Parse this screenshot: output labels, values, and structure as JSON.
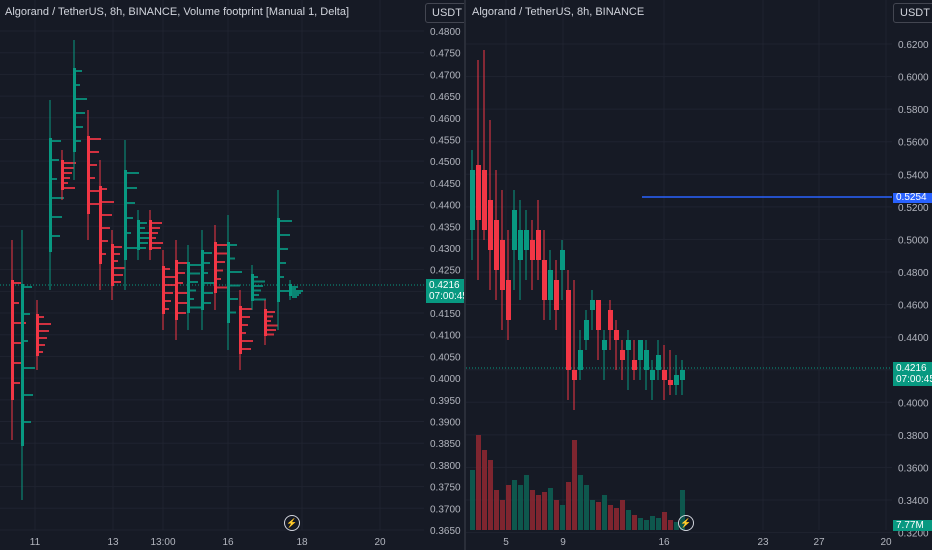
{
  "left_chart": {
    "legend": "Algorand / TetherUS, 8h, BINANCE, Volume footprint [Manual 1, Delta]",
    "currency_button": "USDT",
    "price_labels": [
      "0.4800",
      "0.4750",
      "0.4700",
      "0.4650",
      "0.4600",
      "0.4550",
      "0.4500",
      "0.4450",
      "0.4400",
      "0.4350",
      "0.4300",
      "0.4250",
      "0.4200",
      "0.4150",
      "0.4100",
      "0.4050",
      "0.4000",
      "0.3950",
      "0.3900",
      "0.3850",
      "0.3800",
      "0.3750",
      "0.3700",
      "0.3650"
    ],
    "time_labels": [
      "11",
      "13",
      "13:00",
      "16",
      "18",
      "20"
    ],
    "last_price": "0.4216",
    "countdown": "07:00:45",
    "replay_icon": "lightning-icon"
  },
  "right_chart": {
    "legend": "Algorand / TetherUS, 8h, BINANCE",
    "currency_button": "USDT",
    "price_labels": [
      "0.6200",
      "0.6000",
      "0.5800",
      "0.5600",
      "0.5400",
      "0.5200",
      "0.5000",
      "0.4800",
      "0.4600",
      "0.4400",
      "0.4200",
      "0.4000",
      "0.3800",
      "0.3600",
      "0.3400",
      "0.3200"
    ],
    "time_labels": [
      "5",
      "9",
      "16",
      "23",
      "27",
      "20"
    ],
    "last_price": "0.4216",
    "countdown": "07:00:45",
    "horizontal_line_price": "0.5254",
    "volume_label": "7.77M",
    "replay_icon": "lightning-icon"
  },
  "colors": {
    "up": "#089981",
    "down": "#f23645",
    "background": "#161a25",
    "grid": "#1f2330",
    "axis_text": "#b2b5be",
    "hline": "#2962ff"
  }
}
